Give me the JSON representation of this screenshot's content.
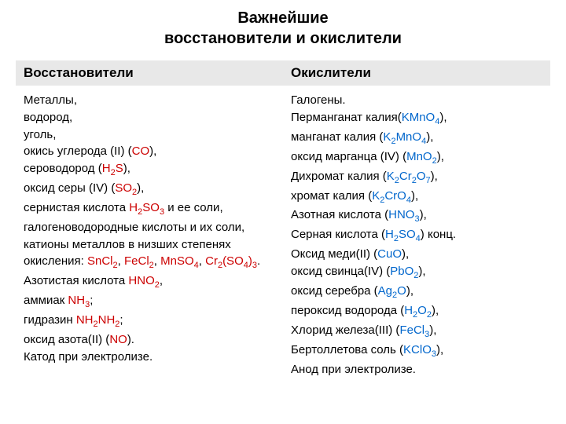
{
  "title_line1": "Важнейшие",
  "title_line2": "восстановители и окислители",
  "headers": {
    "left": "Восстановители",
    "right": "Окислители"
  },
  "left": {
    "l1": "Металлы,",
    "l2": "водород,",
    "l3": "уголь,",
    "l4a": "окись углерода (II) (",
    "l4b": "CO",
    "l4c": "),",
    "l5a": "сероводород (",
    "l5b": "H",
    "l5c": "S",
    "l5d": "),",
    "l5_sub1": "2",
    "l6a": "оксид серы (IV) (",
    "l6b": "SO",
    "l6c": "),",
    "l6_sub1": "2",
    "l7a": "сернистая кислота ",
    "l7b": "H",
    "l7c": "SO",
    "l7d": " и ее соли,",
    "l7_sub1": "2",
    "l7_sub2": "3",
    "l8": "галогеноводородные кислоты и их соли,",
    "l9": "катионы металлов в низших степенях",
    "l10a": "окисления: ",
    "l10b": "SnCl",
    "l10c": ", ",
    "l10d": "FeCl",
    "l10e": ", ",
    "l10f": "MnSO",
    "l10g": ", ",
    "l10h": "Cr",
    "l10i": "(SO",
    "l10j": ")",
    "l10k": ".",
    "l10_sub1": "2",
    "l10_sub2": "2",
    "l10_sub3": "4",
    "l10_sub4": "2",
    "l10_sub5": "4",
    "l10_sub6": "3",
    "l11a": "Азотистая кислота ",
    "l11b": "HNO",
    "l11c": ",",
    "l11_sub1": "2",
    "l12a": "аммиак ",
    "l12b": "NH",
    "l12c": ";",
    "l12_sub1": "3",
    "l13a": "гидразин ",
    "l13b": "NH",
    "l13c": "NH",
    "l13d": ";",
    "l13_sub1": "2",
    "l13_sub2": "2",
    "l14a": "оксид азота(II) (",
    "l14b": "NO",
    "l14c": ").",
    "l15": "Катод при электролизе."
  },
  "right": {
    "r1": "Галогены.",
    "r2a": "Перманганат калия(",
    "r2b": "KMnO",
    "r2c": "),",
    "r2_sub1": "4",
    "r3a": "манганат калия (",
    "r3b": "K",
    "r3c": "MnO",
    "r3d": "),",
    "r3_sub1": "2",
    "r3_sub2": "4",
    "r4a": "оксид марганца (IV) (",
    "r4b": "MnO",
    "r4c": "),",
    "r4_sub1": "2",
    "r5a": "Дихромат калия (",
    "r5b": "K",
    "r5c": "Cr",
    "r5d": "O",
    "r5e": "),",
    "r5_sub1": "2",
    "r5_sub2": "2",
    "r5_sub3": "7",
    "r6a": "хромат калия (",
    "r6b": "K",
    "r6c": "CrO",
    "r6d": "),",
    "r6_sub1": "2",
    "r6_sub2": "4",
    "r7a": "Азотная кислота (",
    "r7b": "HNO",
    "r7c": "),",
    "r7_sub1": "3",
    "r8a": "Серная кислота (",
    "r8b": "H",
    "r8c": "SO",
    "r8d": ") конц.",
    "r8_sub1": "2",
    "r8_sub2": "4",
    "r9a": "Оксид меди(II) (",
    "r9b": "CuO",
    "r9c": "),",
    "r10a": "оксид свинца(IV) (",
    "r10b": "PbO",
    "r10c": "),",
    "r10_sub1": "2",
    "r11a": "оксид серебра (",
    "r11b": "Ag",
    "r11c": "O",
    "r11d": "),",
    "r11_sub1": "2",
    "r12a": "пероксид водорода (",
    "r12b": "H",
    "r12c": "O",
    "r12d": "),",
    "r12_sub1": "2",
    "r12_sub2": "2",
    "r13a": "Хлорид железа(III) (",
    "r13b": "FeCl",
    "r13c": "),",
    "r13_sub1": "3",
    "r14a": "Бертоллетова соль (",
    "r14b": "KClO",
    "r14c": "),",
    "r14_sub1": "3",
    "r15": "Анод при электролизе."
  },
  "colors": {
    "red": "#cc0000",
    "blue": "#0066cc",
    "black": "#000000",
    "header_bg": "#e8e8e8"
  }
}
